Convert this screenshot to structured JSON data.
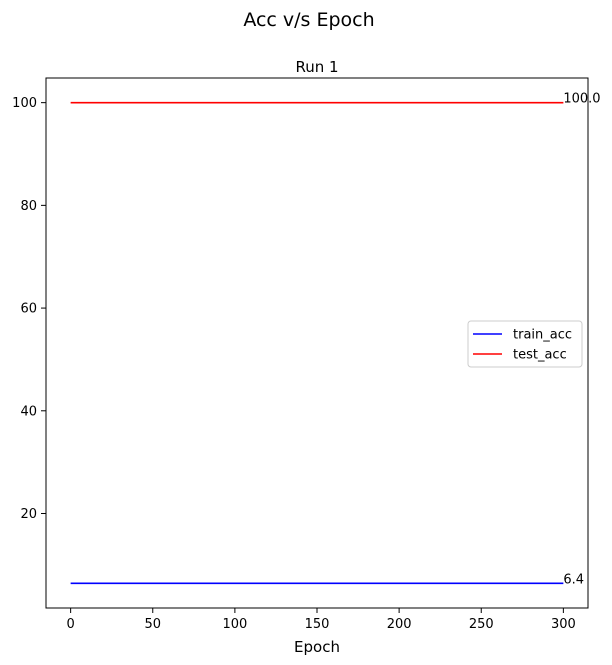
{
  "figure": {
    "suptitle": "Acc v/s Epoch"
  },
  "chart_data": {
    "type": "line",
    "title": "Run 1",
    "xlabel": "Epoch",
    "ylabel": "",
    "xlim": [
      -15,
      315
    ],
    "ylim": [
      1.6,
      104.8
    ],
    "xticks": [
      0,
      50,
      100,
      150,
      200,
      250,
      300
    ],
    "yticks": [
      20,
      40,
      60,
      80,
      100
    ],
    "grid": false,
    "legend_position": "center-right",
    "series": [
      {
        "name": "train_acc",
        "color": "#0000ff",
        "x": [
          0,
          300
        ],
        "y": [
          6.4,
          6.4
        ]
      },
      {
        "name": "test_acc",
        "color": "#ff0000",
        "x": [
          0,
          300
        ],
        "y": [
          100.0,
          100.0
        ]
      }
    ],
    "annotations": [
      {
        "text": "100.0",
        "x": 300,
        "y": 100.0
      },
      {
        "text": "6.4",
        "x": 300,
        "y": 6.4
      }
    ]
  }
}
